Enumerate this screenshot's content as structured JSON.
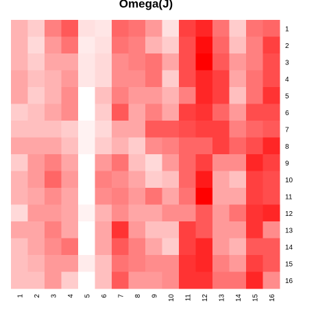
{
  "chart_data": {
    "type": "heatmap",
    "title": "Omega(J)",
    "rows": [
      "1",
      "2",
      "3",
      "4",
      "5",
      "6",
      "7",
      "8",
      "9",
      "10",
      "11",
      "12",
      "13",
      "14",
      "15",
      "16"
    ],
    "columns": [
      "1",
      "2",
      "3",
      "4",
      "5",
      "6",
      "7",
      "8",
      "9",
      "10",
      "11",
      "12",
      "13",
      "14",
      "15",
      "16"
    ],
    "color_scale": {
      "low": "#ffffff",
      "high": "#ff0000"
    },
    "values": [
      [
        0.3,
        0.2,
        0.5,
        0.65,
        0.12,
        0.1,
        0.6,
        0.55,
        0.4,
        0.12,
        0.75,
        0.85,
        0.55,
        0.2,
        0.55,
        0.6
      ],
      [
        0.3,
        0.15,
        0.4,
        0.55,
        0.08,
        0.12,
        0.55,
        0.5,
        0.3,
        0.2,
        0.7,
        0.95,
        0.6,
        0.25,
        0.5,
        0.75
      ],
      [
        0.3,
        0.2,
        0.35,
        0.35,
        0.1,
        0.15,
        0.45,
        0.5,
        0.55,
        0.35,
        0.7,
        1.0,
        0.65,
        0.4,
        0.5,
        0.7
      ],
      [
        0.35,
        0.25,
        0.3,
        0.4,
        0.1,
        0.15,
        0.45,
        0.45,
        0.55,
        0.2,
        0.7,
        0.85,
        0.75,
        0.35,
        0.55,
        0.7
      ],
      [
        0.35,
        0.2,
        0.3,
        0.45,
        0.0,
        0.25,
        0.5,
        0.4,
        0.4,
        0.3,
        0.5,
        0.85,
        0.75,
        0.25,
        0.55,
        0.8
      ],
      [
        0.2,
        0.25,
        0.35,
        0.45,
        0.0,
        0.2,
        0.65,
        0.35,
        0.5,
        0.35,
        0.75,
        0.8,
        0.6,
        0.4,
        0.7,
        0.7
      ],
      [
        0.25,
        0.25,
        0.25,
        0.2,
        0.05,
        0.15,
        0.35,
        0.35,
        0.65,
        0.65,
        0.7,
        0.75,
        0.75,
        0.5,
        0.6,
        0.65
      ],
      [
        0.35,
        0.35,
        0.35,
        0.25,
        0.05,
        0.2,
        0.3,
        0.2,
        0.45,
        0.5,
        0.6,
        0.6,
        0.75,
        0.6,
        0.7,
        0.85
      ],
      [
        0.2,
        0.4,
        0.5,
        0.35,
        0.0,
        0.4,
        0.55,
        0.25,
        0.15,
        0.4,
        0.6,
        0.75,
        0.45,
        0.45,
        0.85,
        0.75
      ],
      [
        0.3,
        0.4,
        0.6,
        0.4,
        0.0,
        0.5,
        0.45,
        0.35,
        0.2,
        0.25,
        0.6,
        0.9,
        0.35,
        0.25,
        0.75,
        0.7
      ],
      [
        0.3,
        0.35,
        0.45,
        0.35,
        0.0,
        0.45,
        0.5,
        0.4,
        0.55,
        0.35,
        0.55,
        1.0,
        0.35,
        0.35,
        0.75,
        0.7
      ],
      [
        0.15,
        0.4,
        0.4,
        0.35,
        0.05,
        0.3,
        0.45,
        0.35,
        0.35,
        0.45,
        0.45,
        0.65,
        0.4,
        0.55,
        0.8,
        0.85
      ],
      [
        0.35,
        0.35,
        0.5,
        0.35,
        0.0,
        0.35,
        0.8,
        0.4,
        0.25,
        0.25,
        0.75,
        0.65,
        0.4,
        0.4,
        0.8,
        0.45
      ],
      [
        0.25,
        0.35,
        0.45,
        0.55,
        0.0,
        0.35,
        0.65,
        0.5,
        0.35,
        0.2,
        0.75,
        0.85,
        0.4,
        0.3,
        0.65,
        0.65
      ],
      [
        0.25,
        0.3,
        0.4,
        0.4,
        0.08,
        0.25,
        0.55,
        0.5,
        0.45,
        0.45,
        0.8,
        0.85,
        0.5,
        0.4,
        0.75,
        0.65
      ],
      [
        0.25,
        0.25,
        0.4,
        0.2,
        0.0,
        0.25,
        0.65,
        0.4,
        0.4,
        0.45,
        0.8,
        0.8,
        0.55,
        0.55,
        0.85,
        0.45
      ]
    ]
  }
}
